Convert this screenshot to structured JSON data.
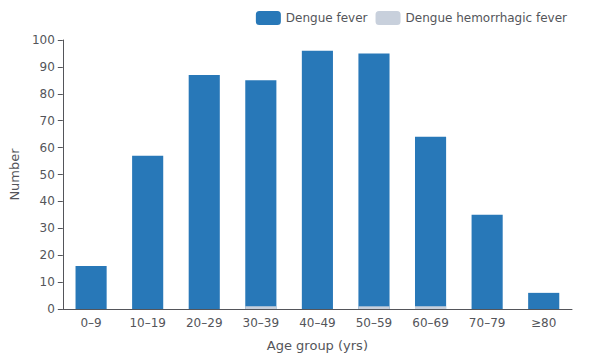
{
  "chart_data": {
    "type": "bar",
    "xlabel": "Age group (yrs)",
    "ylabel": "Number",
    "categories": [
      "0–9",
      "10–19",
      "20–29",
      "30–39",
      "40–49",
      "50–59",
      "60–69",
      "70–79",
      "≥80"
    ],
    "series": [
      {
        "name": "Dengue fever",
        "color": "#2878b8",
        "values": [
          16,
          57,
          87,
          85,
          96,
          95,
          64,
          35,
          6
        ]
      },
      {
        "name": "Dengue hemorrhagic fever",
        "color": "#c8d0dc",
        "values": [
          0,
          0,
          0,
          1,
          0,
          1,
          1,
          0,
          0
        ]
      }
    ],
    "ylim": [
      0,
      100
    ],
    "yticks": [
      0,
      10,
      20,
      30,
      40,
      50,
      60,
      70,
      80,
      90,
      100
    ],
    "stacked": false,
    "grid": false,
    "legend": "upper right"
  }
}
